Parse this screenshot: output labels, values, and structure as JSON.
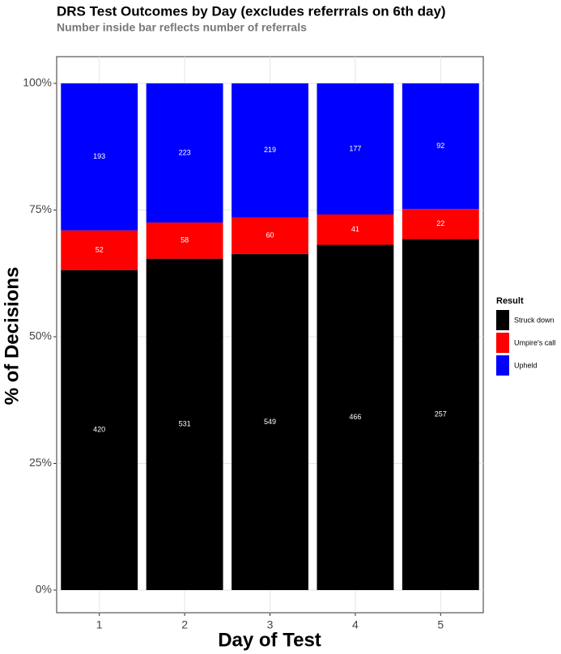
{
  "chart_data": {
    "type": "bar",
    "stacked": "percent",
    "title": "DRS Test Outcomes by Day (excludes referrrals on 6th day)",
    "subtitle": "Number inside bar reflects number of referrals",
    "x_label": "Day of Test",
    "y_label": "% of Decisions",
    "legend_title": "Result",
    "categories": [
      "1",
      "2",
      "3",
      "4",
      "5"
    ],
    "series": [
      {
        "name": "Struck down",
        "color": "#000000",
        "values": [
          420,
          531,
          549,
          466,
          257
        ]
      },
      {
        "name": "Umpire's call",
        "color": "#ff0000",
        "values": [
          52,
          58,
          60,
          41,
          22
        ]
      },
      {
        "name": "Upheld",
        "color": "#0000ff",
        "values": [
          193,
          223,
          219,
          177,
          92
        ]
      }
    ],
    "ylim": [
      0,
      100
    ],
    "yticks": [
      {
        "value": 0,
        "label": "0%"
      },
      {
        "value": 25,
        "label": "25%"
      },
      {
        "value": 50,
        "label": "50%"
      },
      {
        "value": 75,
        "label": "75%"
      },
      {
        "value": 100,
        "label": "100%"
      }
    ],
    "grid": true
  }
}
